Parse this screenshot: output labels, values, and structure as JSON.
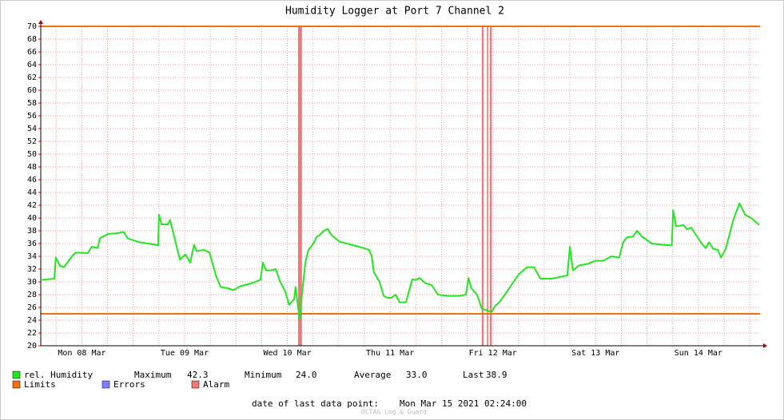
{
  "chart_data": {
    "type": "line",
    "title": "Humidity Logger at Port 7 Channel 2",
    "xlim": [
      0,
      168
    ],
    "xticks": [
      {
        "value": 9.6,
        "label": "Mon 08 Mar"
      },
      {
        "value": 33.6,
        "label": "Tue 09 Mar"
      },
      {
        "value": 57.6,
        "label": "Wed 10 Mar"
      },
      {
        "value": 81.6,
        "label": "Thu 11 Mar"
      },
      {
        "value": 105.6,
        "label": "Fri 12 Mar"
      },
      {
        "value": 129.6,
        "label": "Sat 13 Mar"
      },
      {
        "value": 153.6,
        "label": "Sun 14 Mar"
      }
    ],
    "xgrid": {
      "start": 3.6,
      "step": 6
    },
    "ylim": [
      20,
      70
    ],
    "yticks": [
      20,
      22,
      24,
      26,
      28,
      30,
      32,
      34,
      36,
      38,
      40,
      42,
      44,
      46,
      48,
      50,
      52,
      54,
      56,
      58,
      60,
      62,
      64,
      66,
      68,
      70
    ],
    "grid": true,
    "x": [
      0,
      3.2,
      3.5,
      4.5,
      5.4,
      7.3,
      8.2,
      11.0,
      11.9,
      13.3,
      13.8,
      15.7,
      17.5,
      19.4,
      20.3,
      23.1,
      26.9,
      27.4,
      27.6,
      28.2,
      29.7,
      30.2,
      31.2,
      32.5,
      33.8,
      34.9,
      35.8,
      36.4,
      38.1,
      39.4,
      40.9,
      42.0,
      43.7,
      45.0,
      46.5,
      49.3,
      51.3,
      51.9,
      52.6,
      53.9,
      54.9,
      55.8,
      57.1,
      58.0,
      59.2,
      59.5,
      60.1,
      60.5,
      61.0,
      61.8,
      62.5,
      63.7,
      64.4,
      65.1,
      66.1,
      67.0,
      67.9,
      69.8,
      72.6,
      75.4,
      76.7,
      77.3,
      77.8,
      79.1,
      80.1,
      81.0,
      81.9,
      82.9,
      83.8,
      85.3,
      86.1,
      86.8,
      87.5,
      88.5,
      89.8,
      91.3,
      92.8,
      95.0,
      97.8,
      99.3,
      99.9,
      100.6,
      101.9,
      103.0,
      104.3,
      105.3,
      106.2,
      107.1,
      108.4,
      109.9,
      111.8,
      113.6,
      115.2,
      116.7,
      119.3,
      123.0,
      123.6,
      124.3,
      125.8,
      127.7,
      129.5,
      131.4,
      133.3,
      135.1,
      136.1,
      137.0,
      138.3,
      139.3,
      140.4,
      142.7,
      145.5,
      147.4,
      147.7,
      148.4,
      150.1,
      151.0,
      151.9,
      152.9,
      154.4,
      155.3,
      156.1,
      157.0,
      158.1,
      158.9,
      160.0,
      160.9,
      161.8,
      163.2,
      164.5,
      165.9,
      167.8
    ],
    "series": [
      {
        "name": "rel. Humidity",
        "color": "#22e622",
        "values": [
          30.3,
          30.5,
          33.8,
          32.5,
          32.3,
          34,
          34.6,
          34.5,
          35.5,
          35.3,
          36.8,
          37.5,
          37.6,
          37.8,
          36.8,
          36.2,
          35.8,
          35.7,
          40.5,
          39,
          39,
          39.7,
          37,
          33.5,
          34.3,
          33.0,
          35.8,
          34.8,
          35,
          34.6,
          31,
          29.2,
          29,
          28.7,
          29.3,
          29.8,
          30.3,
          33,
          31.8,
          31.8,
          32,
          30.2,
          28.5,
          26.4,
          27.3,
          29.2,
          26,
          24.1,
          28,
          33,
          35,
          36,
          37,
          37.3,
          38,
          38.3,
          37.3,
          36.3,
          35.8,
          35.3,
          35,
          34,
          31.5,
          30,
          27.8,
          27.5,
          27.5,
          28,
          26.8,
          26.8,
          28.8,
          30.4,
          30.3,
          30.6,
          29.8,
          29.5,
          28,
          27.8,
          27.8,
          28,
          30.6,
          29,
          28,
          25.8,
          25.5,
          25.3,
          26.3,
          26.8,
          28,
          29.5,
          31.3,
          32.3,
          32.3,
          30.5,
          30.5,
          31,
          35.5,
          31.8,
          32.6,
          32.8,
          33.3,
          33.3,
          34,
          33.8,
          36.3,
          37,
          37.1,
          38,
          37.1,
          36,
          35.8,
          35.7,
          41.2,
          38.7,
          38.9,
          38.2,
          38.5,
          37.5,
          36,
          35.3,
          36.2,
          35.2,
          35,
          33.8,
          35.2,
          37.5,
          39.8,
          42.3,
          40.5,
          40,
          38.9
        ]
      }
    ],
    "stats": [
      {
        "name": "Maximum",
        "value": 42.3
      },
      {
        "name": "Minimum",
        "value": 24,
        "label": "24.0"
      },
      {
        "name": "Average",
        "value": 33,
        "label": "33.0"
      },
      {
        "name": "Last",
        "value": 38.9
      }
    ],
    "limits": {
      "name": "Limits",
      "color": "#f07010",
      "values": [
        25,
        70
      ]
    },
    "errors": {
      "name": "Errors",
      "color": "#7f7fff"
    },
    "alarms": {
      "name": "Alarm",
      "color": "#f07878",
      "periods": [
        [
          60.1,
          61.0
        ],
        [
          103.0,
          103.4
        ],
        [
          104.2,
          104.5
        ],
        [
          104.9,
          105.3
        ]
      ]
    },
    "footer_label": "date of last data point:",
    "footer_date": "Mon Mar 15 2021 02:24:00",
    "watermark": "OCTA& Log & Guard"
  }
}
